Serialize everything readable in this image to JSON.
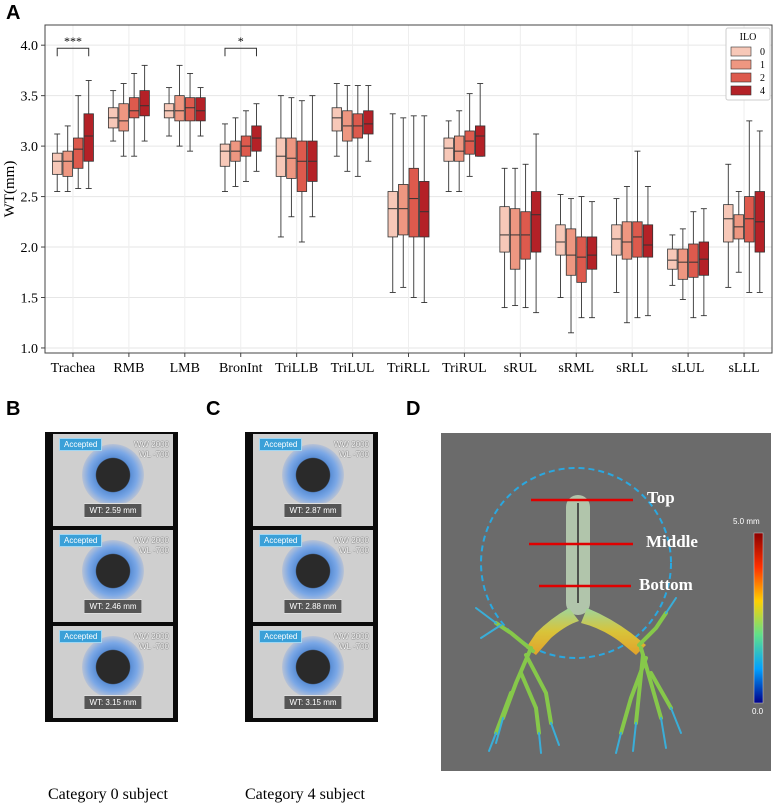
{
  "panels": {
    "a": "A",
    "b": "B",
    "c": "C",
    "d": "D"
  },
  "colors": {
    "ilo0": "#f7c8b8",
    "ilo1": "#ee9781",
    "ilo2": "#dd5a4d",
    "ilo4": "#b42127"
  },
  "chart_data": {
    "type": "box",
    "ylabel": "WT(mm)",
    "ylim": [
      0.95,
      4.2
    ],
    "yticks": [
      "1.0",
      "1.5",
      "2.0",
      "2.5",
      "3.0",
      "3.5",
      "4.0"
    ],
    "grid": true,
    "legend": {
      "title": "ILO",
      "placement": "top-right",
      "entries": [
        "0",
        "1",
        "2",
        "4"
      ]
    },
    "categories": [
      "Trachea",
      "RMB",
      "LMB",
      "BronInt",
      "TriLLB",
      "TriLUL",
      "TriRLL",
      "TriRUL",
      "sRUL",
      "sRML",
      "sRLL",
      "sLUL",
      "sLLL"
    ],
    "annotations": [
      {
        "label": "***",
        "category": "Trachea",
        "from_series": "0",
        "to_series": "4",
        "y": 3.97
      },
      {
        "label": "*",
        "category": "BronInt",
        "from_series": "0",
        "to_series": "4",
        "y": 3.97
      }
    ],
    "series": [
      {
        "name": "0",
        "boxes": [
          [
            2.55,
            2.72,
            2.85,
            2.93,
            3.12
          ],
          [
            3.05,
            3.18,
            3.28,
            3.38,
            3.55
          ],
          [
            3.1,
            3.28,
            3.35,
            3.42,
            3.58
          ],
          [
            2.55,
            2.8,
            2.95,
            3.02,
            3.22
          ],
          [
            2.1,
            2.7,
            2.9,
            3.08,
            3.5
          ],
          [
            2.9,
            3.15,
            3.28,
            3.38,
            3.62
          ],
          [
            1.55,
            2.1,
            2.38,
            2.55,
            3.32
          ],
          [
            2.55,
            2.85,
            2.98,
            3.08,
            3.25
          ],
          [
            1.4,
            1.95,
            2.12,
            2.4,
            2.78
          ],
          [
            1.5,
            1.92,
            2.05,
            2.22,
            2.52
          ],
          [
            1.55,
            1.92,
            2.08,
            2.22,
            2.48
          ],
          [
            1.62,
            1.78,
            1.87,
            1.98,
            2.12
          ],
          [
            1.6,
            2.05,
            2.28,
            2.42,
            2.82
          ]
        ]
      },
      {
        "name": "1",
        "boxes": [
          [
            2.55,
            2.7,
            2.85,
            2.95,
            3.2
          ],
          [
            2.9,
            3.15,
            3.25,
            3.42,
            3.62
          ],
          [
            3.0,
            3.25,
            3.35,
            3.5,
            3.8
          ],
          [
            2.6,
            2.85,
            2.95,
            3.05,
            3.28
          ],
          [
            2.3,
            2.68,
            2.88,
            3.08,
            3.48
          ],
          [
            2.75,
            3.05,
            3.2,
            3.35,
            3.6
          ],
          [
            1.6,
            2.12,
            2.38,
            2.62,
            3.28
          ],
          [
            2.55,
            2.85,
            2.95,
            3.1,
            3.35
          ],
          [
            1.42,
            1.78,
            2.12,
            2.38,
            2.78
          ],
          [
            1.15,
            1.72,
            1.92,
            2.18,
            2.48
          ],
          [
            1.25,
            1.88,
            2.05,
            2.25,
            2.6
          ],
          [
            1.48,
            1.68,
            1.85,
            1.98,
            2.18
          ],
          [
            1.75,
            2.08,
            2.2,
            2.32,
            2.55
          ]
        ]
      },
      {
        "name": "2",
        "boxes": [
          [
            2.58,
            2.78,
            2.97,
            3.08,
            3.5
          ],
          [
            2.9,
            3.28,
            3.35,
            3.48,
            3.72
          ],
          [
            2.95,
            3.25,
            3.38,
            3.48,
            3.72
          ],
          [
            2.65,
            2.9,
            3.0,
            3.1,
            3.35
          ],
          [
            2.05,
            2.55,
            2.85,
            3.05,
            3.45
          ],
          [
            2.7,
            3.08,
            3.2,
            3.32,
            3.6
          ],
          [
            1.5,
            2.1,
            2.48,
            2.78,
            3.3
          ],
          [
            2.7,
            2.92,
            3.05,
            3.15,
            3.52
          ],
          [
            1.4,
            1.88,
            2.12,
            2.35,
            2.82
          ],
          [
            1.3,
            1.65,
            1.9,
            2.1,
            2.5
          ],
          [
            1.3,
            1.9,
            2.1,
            2.25,
            2.95
          ],
          [
            1.3,
            1.7,
            1.85,
            2.03,
            2.35
          ],
          [
            1.55,
            2.05,
            2.28,
            2.5,
            3.25
          ]
        ]
      },
      {
        "name": "4",
        "boxes": [
          [
            2.58,
            2.85,
            3.1,
            3.32,
            3.65
          ],
          [
            3.05,
            3.3,
            3.4,
            3.55,
            3.8
          ],
          [
            3.1,
            3.25,
            3.35,
            3.48,
            3.58
          ],
          [
            2.75,
            2.95,
            3.08,
            3.2,
            3.42
          ],
          [
            2.3,
            2.65,
            2.85,
            3.05,
            3.5
          ],
          [
            2.85,
            3.12,
            3.22,
            3.35,
            3.6
          ],
          [
            1.45,
            2.1,
            2.35,
            2.65,
            3.3
          ],
          [
            2.9,
            2.9,
            3.1,
            3.2,
            3.62
          ],
          [
            1.35,
            1.95,
            2.32,
            2.55,
            3.12
          ],
          [
            1.3,
            1.78,
            1.92,
            2.1,
            2.45
          ],
          [
            1.32,
            1.9,
            2.02,
            2.22,
            2.6
          ],
          [
            1.32,
            1.72,
            1.88,
            2.05,
            2.38
          ],
          [
            1.55,
            1.95,
            2.25,
            2.55,
            3.15
          ]
        ]
      }
    ]
  },
  "panel_b": {
    "caption": "Category 0 subject",
    "frames": [
      {
        "tag": "Accepted",
        "window": [
          "WW 2000",
          "WL -700"
        ],
        "wt": "WT: 2.59 mm"
      },
      {
        "tag": "Accepted",
        "window": [
          "WW 2000",
          "WL -700"
        ],
        "wt": "WT: 2.46 mm"
      },
      {
        "tag": "Accepted",
        "window": [
          "WW 2000",
          "WL -700"
        ],
        "wt": "WT: 3.15 mm"
      }
    ]
  },
  "panel_c": {
    "caption": "Category 4 subject",
    "frames": [
      {
        "tag": "Accepted",
        "window": [
          "WW 2000",
          "WL -700"
        ],
        "wt": "WT: 2.87 mm"
      },
      {
        "tag": "Accepted",
        "window": [
          "WW 2000",
          "WL -700"
        ],
        "wt": "WT: 2.88 mm"
      },
      {
        "tag": "Accepted",
        "window": [
          "WW 2000",
          "WL -700"
        ],
        "wt": "WT: 3.15 mm"
      }
    ]
  },
  "panel_d": {
    "labels": {
      "top": "Top",
      "middle": "Middle",
      "bottom": "Bottom"
    },
    "scale": {
      "max": "5.0 mm",
      "min": "0.0"
    }
  }
}
